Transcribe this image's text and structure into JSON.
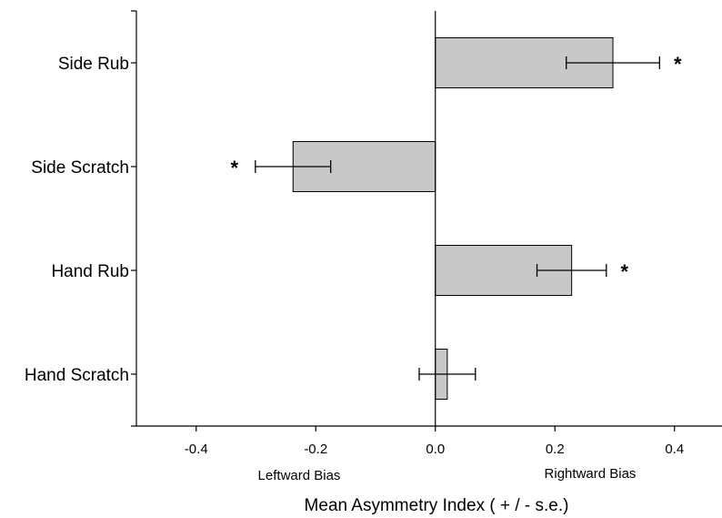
{
  "chart_data": {
    "type": "bar",
    "orientation": "horizontal",
    "categories": [
      "Side Rub",
      "Side Scratch",
      "Hand Rub",
      "Hand Scratch"
    ],
    "values": [
      0.297,
      -0.238,
      0.228,
      0.02
    ],
    "errors": [
      0.078,
      0.063,
      0.058,
      0.047
    ],
    "significant": [
      true,
      true,
      true,
      false
    ],
    "significance_marker": "*",
    "xlabel": "Mean Asymmetry Index ( + / - s.e.)",
    "xlim": [
      -0.5,
      0.5
    ],
    "xticks": [
      -0.4,
      -0.2,
      0.0,
      0.2,
      0.4
    ],
    "xtick_labels": [
      "-0.4",
      "-0.2",
      "0.0",
      "0.2",
      "0.4"
    ],
    "direction_labels": {
      "left": "Leftward Bias",
      "right": "Rightward Bias"
    },
    "bar_color": "#c8c8c8",
    "grid": false,
    "legend": "none"
  }
}
